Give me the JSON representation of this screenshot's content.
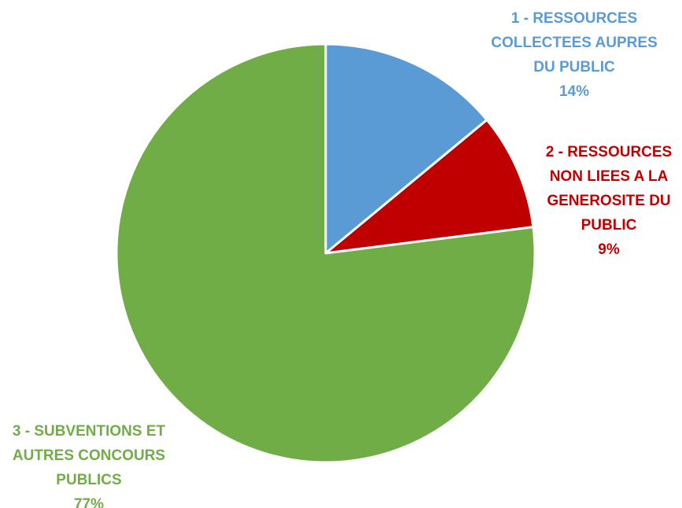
{
  "chart_data": {
    "type": "pie",
    "title": "",
    "slices": [
      {
        "label_lines": [
          "1 - RESSOURCES",
          "COLLECTEES AUPRES",
          "DU PUBLIC"
        ],
        "value": 14,
        "value_label": "14%",
        "color": "#5B9BD5",
        "text_color": "#5B9BD5"
      },
      {
        "label_lines": [
          "2 - RESSOURCES",
          "NON LIEES A LA",
          "GENEROSITE DU",
          "PUBLIC"
        ],
        "value": 9,
        "value_label": "9%",
        "color": "#C00000",
        "text_color": "#C00000"
      },
      {
        "label_lines": [
          "3 - SUBVENTIONS ET",
          "AUTRES CONCOURS",
          "PUBLICS"
        ],
        "value": 77,
        "value_label": "77%",
        "color": "#70AD47",
        "text_color": "#70AD47"
      }
    ],
    "start_angle": "12 o'clock",
    "direction": "clockwise",
    "legend": "none",
    "slice_border_color": "#FFFFFF"
  }
}
